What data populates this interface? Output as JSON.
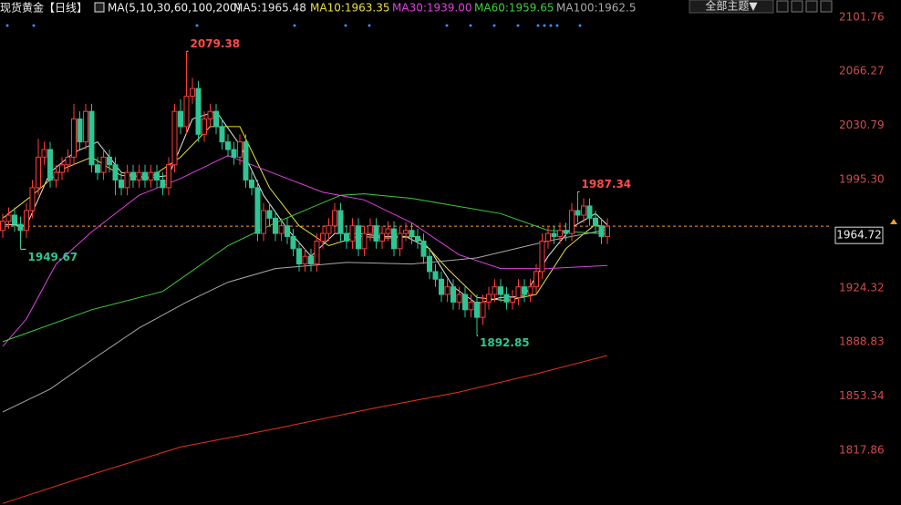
{
  "header": {
    "title": "现货黄金【日线】",
    "indicator": "MA(5,10,30,60,100,200)",
    "theme_button": "全部主题▼"
  },
  "chart_data": {
    "type": "candlestick",
    "up_color": "#ff3b3b",
    "down_color": "#2fc595",
    "price_line_color": "#ff9c1a",
    "open": [
      1962,
      1968,
      1972,
      1966,
      1962,
      1975,
      1990,
      2010,
      2015,
      1995,
      2000,
      2005,
      2010,
      2035,
      2020,
      2040,
      2005,
      2000,
      2010,
      2005,
      1995,
      1990,
      2000,
      1995,
      2000,
      1995,
      2000,
      1995,
      1990,
      2005,
      2040,
      2030,
      2050,
      2055,
      2025,
      2035,
      2040,
      2030,
      2020,
      2015,
      2010,
      2020,
      1995,
      1990,
      1960,
      1975,
      1970,
      1960,
      1965,
      1958,
      1950,
      1940,
      1945,
      1940,
      1955,
      1960,
      1965,
      1975,
      1960,
      1955,
      1965,
      1950,
      1960,
      1965,
      1955,
      1960,
      1963,
      1950,
      1960,
      1962,
      1958,
      1955,
      1945,
      1935,
      1930,
      1920,
      1925,
      1915,
      1920,
      1910,
      1915,
      1905,
      1915,
      1920,
      1925,
      1920,
      1915,
      1918,
      1925,
      1920,
      1925,
      1935,
      1955,
      1960,
      1958,
      1962,
      1960,
      1975,
      1972,
      1978,
      1970,
      1965,
      1958
    ],
    "high": [
      1973,
      1977,
      1977,
      1971,
      1980,
      1995,
      2022,
      2020,
      2020,
      2005,
      2010,
      2015,
      2045,
      2040,
      2045,
      2045,
      2010,
      2015,
      2015,
      2010,
      2000,
      2005,
      2005,
      2005,
      2005,
      2005,
      2005,
      2000,
      2010,
      2045,
      2048,
      2079.38,
      2062,
      2060,
      2040,
      2045,
      2045,
      2035,
      2025,
      2020,
      2025,
      2025,
      2000,
      1995,
      1980,
      1980,
      1975,
      1970,
      1970,
      1963,
      1955,
      1950,
      1950,
      1960,
      1965,
      1970,
      1980,
      1980,
      1965,
      1970,
      1970,
      1965,
      1970,
      1970,
      1965,
      1968,
      1968,
      1965,
      1967,
      1967,
      1963,
      1960,
      1950,
      1940,
      1935,
      1930,
      1930,
      1925,
      1925,
      1920,
      1920,
      1920,
      1925,
      1930,
      1930,
      1925,
      1923,
      1930,
      1930,
      1930,
      1940,
      1960,
      1965,
      1965,
      1967,
      1967,
      1980,
      1987.34,
      1983,
      1983,
      1975,
      1970,
      1970
    ],
    "low": [
      1957,
      1963,
      1961,
      1949.67,
      1957,
      1970,
      1985,
      2005,
      1990,
      1990,
      1995,
      2000,
      2005,
      2015,
      2015,
      2000,
      1995,
      1995,
      2000,
      1985,
      1985,
      1985,
      1990,
      1990,
      1990,
      1990,
      1990,
      1985,
      1985,
      2000,
      2025,
      2025,
      2045,
      2020,
      2020,
      2030,
      2025,
      2015,
      2010,
      2005,
      2005,
      1990,
      1985,
      1955,
      1955,
      1965,
      1955,
      1955,
      1953,
      1945,
      1935,
      1935,
      1935,
      1935,
      1950,
      1955,
      1960,
      1955,
      1950,
      1950,
      1945,
      1945,
      1955,
      1950,
      1950,
      1955,
      1945,
      1945,
      1955,
      1953,
      1950,
      1940,
      1930,
      1925,
      1915,
      1915,
      1910,
      1910,
      1905,
      1905,
      1892.85,
      1900,
      1910,
      1915,
      1915,
      1910,
      1910,
      1913,
      1915,
      1915,
      1920,
      1930,
      1950,
      1953,
      1953,
      1955,
      1955,
      1967,
      1967,
      1965,
      1960,
      1953,
      1953
    ],
    "close": [
      1968,
      1972,
      1966,
      1962,
      1975,
      1990,
      2010,
      2015,
      1995,
      2000,
      2005,
      2010,
      2035,
      2020,
      2040,
      2005,
      2000,
      2010,
      2005,
      1995,
      1990,
      2000,
      1995,
      2000,
      1995,
      2000,
      1995,
      1990,
      2005,
      2040,
      2030,
      2050,
      2055,
      2025,
      2035,
      2040,
      2030,
      2020,
      2015,
      2010,
      2020,
      1995,
      1990,
      1960,
      1975,
      1970,
      1960,
      1965,
      1958,
      1950,
      1940,
      1945,
      1940,
      1955,
      1960,
      1965,
      1975,
      1960,
      1955,
      1965,
      1950,
      1960,
      1965,
      1955,
      1960,
      1963,
      1950,
      1960,
      1962,
      1958,
      1955,
      1945,
      1935,
      1930,
      1920,
      1925,
      1915,
      1920,
      1910,
      1915,
      1905,
      1915,
      1920,
      1925,
      1920,
      1915,
      1918,
      1925,
      1920,
      1925,
      1935,
      1955,
      1960,
      1958,
      1962,
      1960,
      1975,
      1972,
      1978,
      1970,
      1965,
      1958,
      1964.72
    ],
    "series": [
      {
        "name": "MA5:1965.48",
        "color": "#e6e6e6",
        "x": [
          0,
          4,
          8,
          12,
          16,
          20,
          24,
          28,
          32,
          36,
          40,
          44,
          48,
          52,
          56,
          60,
          64,
          68,
          72,
          76,
          80,
          84,
          88,
          92,
          96,
          100,
          102
        ],
        "values": [
          1966,
          1965,
          2000,
          2013,
          2020,
          2000,
          1996,
          1998,
          2035,
          2040,
          2018,
          1985,
          1963,
          1945,
          1960,
          1960,
          1958,
          1958,
          1950,
          1925,
          1914,
          1918,
          1919,
          1945,
          1964,
          1973,
          1965.48
        ]
      },
      {
        "name": "MA10:1963.35",
        "color": "#e8e03a",
        "x": [
          0,
          5,
          10,
          15,
          20,
          25,
          30,
          35,
          40,
          45,
          50,
          55,
          60,
          65,
          70,
          75,
          80,
          85,
          90,
          95,
          100,
          102
        ],
        "values": [
          1970,
          1985,
          2002,
          2010,
          1998,
          1997,
          2010,
          2030,
          2030,
          1990,
          1965,
          1952,
          1958,
          1957,
          1958,
          1937,
          1918,
          1916,
          1920,
          1950,
          1966,
          1963.35
        ]
      },
      {
        "name": "MA30:1939.00",
        "color": "#e040e0",
        "x": [
          0,
          4,
          9,
          15,
          23,
          30,
          38,
          46,
          54,
          61,
          69,
          77,
          84,
          92,
          102
        ],
        "values": [
          1886,
          1904,
          1940,
          1961,
          1985,
          1996,
          2011,
          1999,
          1987,
          1982,
          1967,
          1946,
          1937,
          1937,
          1939.0
        ]
      },
      {
        "name": "MA60:1959.65",
        "color": "#3ccf3c",
        "x": [
          0,
          15,
          27,
          38,
          46,
          57,
          61,
          69,
          84,
          92,
          102
        ],
        "values": [
          1889,
          1910,
          1922,
          1952,
          1967,
          1985,
          1986,
          1983,
          1973,
          1962,
          1959.65
        ]
      },
      {
        "name": "MA100:1962.5",
        "color": "#a8a8a8",
        "x": [
          0,
          8,
          15,
          23,
          31,
          38,
          46,
          58,
          69,
          80,
          92,
          102
        ],
        "values": [
          1843,
          1858,
          1877,
          1898,
          1915,
          1928,
          1937,
          1941,
          1940,
          1944,
          1955,
          1962.5
        ]
      },
      {
        "color": "#e8321e",
        "x": [
          0,
          15,
          30,
          46,
          62,
          77,
          90,
          102
        ],
        "values": [
          1783,
          1802,
          1820,
          1832,
          1845,
          1856,
          1868,
          1880
        ]
      }
    ],
    "ylim": [
      1782,
      2113
    ],
    "yticks": [
      2101.76,
      2066.27,
      2030.79,
      {
        "value": 1995.3,
        "label": "1995.30"
      },
      1924.32,
      1888.83,
      1853.34,
      1817.86
    ]
  }
}
